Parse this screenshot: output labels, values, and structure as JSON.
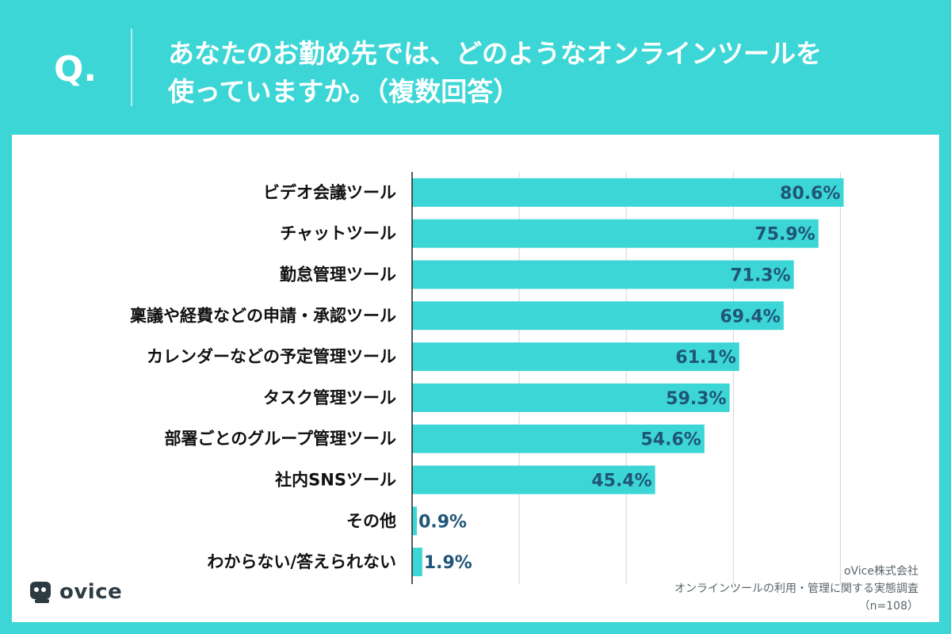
{
  "header": {
    "q_mark": "Q.",
    "question_line1": "あなたのお勤め先では、どのようなオンラインツールを",
    "question_line2": "使っていますか。（複数回答）"
  },
  "brand": {
    "logo_text": "ovice"
  },
  "source": {
    "company": "oVice株式会社",
    "survey": "オンラインツールの利用・管理に関する実態調査",
    "sample": "（n=108）"
  },
  "colors": {
    "background": "#3dd6d6",
    "bar": "#3dd6d6",
    "value_text": "#1f5578",
    "label_text": "#111111"
  },
  "chart_data": {
    "type": "bar",
    "orientation": "horizontal",
    "title": "あなたのお勤め先では、どのようなオンラインツールを使っていますか。（複数回答）",
    "categories": [
      "ビデオ会議ツール",
      "チャットツール",
      "勤怠管理ツール",
      "稟議や経費などの申請・承認ツール",
      "カレンダーなどの予定管理ツール",
      "タスク管理ツール",
      "部署ごとのグループ管理ツール",
      "社内SNSツール",
      "その他",
      "わからない/答えられない"
    ],
    "values": [
      80.6,
      75.9,
      71.3,
      69.4,
      61.1,
      59.3,
      54.6,
      45.4,
      0.9,
      1.9
    ],
    "value_labels": [
      "80.6%",
      "75.9%",
      "71.3%",
      "69.4%",
      "61.1%",
      "59.3%",
      "54.6%",
      "45.4%",
      "0.9%",
      "1.9%"
    ],
    "unit": "%",
    "xlim": [
      0,
      90
    ],
    "grid": true,
    "legend": "none"
  }
}
